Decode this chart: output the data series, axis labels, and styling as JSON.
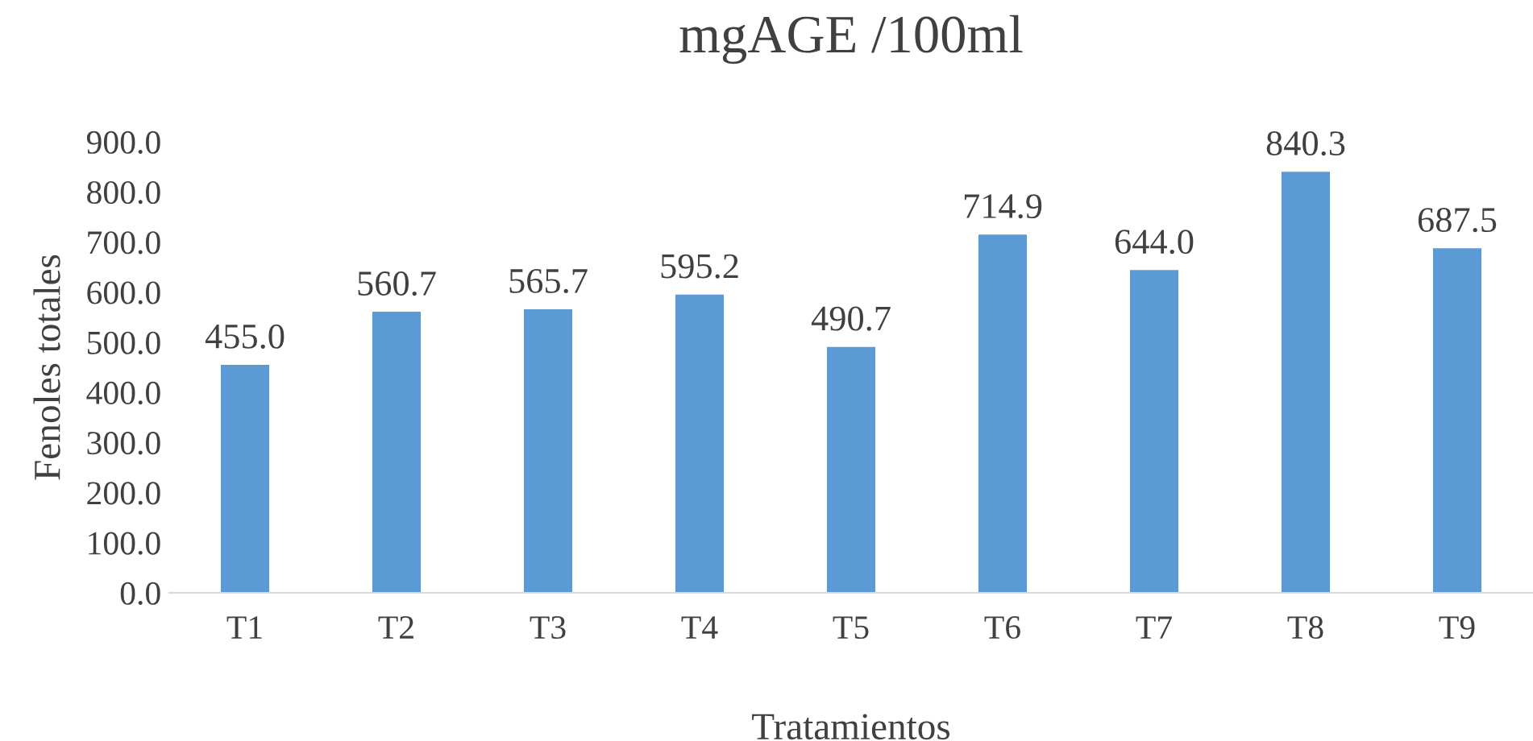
{
  "chart_data": {
    "type": "bar",
    "title": "mgAGE /100ml",
    "xlabel": "Tratamientos",
    "ylabel": "Fenoles totales",
    "categories": [
      "T1",
      "T2",
      "T3",
      "T4",
      "T5",
      "T6",
      "T7",
      "T8",
      "T9"
    ],
    "values": [
      455.0,
      560.7,
      565.7,
      595.2,
      490.7,
      714.9,
      644.0,
      840.3,
      687.5
    ],
    "value_labels": [
      "455.0",
      "560.7",
      "565.7",
      "595.2",
      "490.7",
      "714.9",
      "644.0",
      "840.3",
      "687.5"
    ],
    "color": "#5b9bd5",
    "ylim": [
      0,
      900
    ],
    "yticks": [
      {
        "value": 0,
        "label": "0.0"
      },
      {
        "value": 100,
        "label": "100.0"
      },
      {
        "value": 200,
        "label": "200.0"
      },
      {
        "value": 300,
        "label": "300.0"
      },
      {
        "value": 400,
        "label": "400.0"
      },
      {
        "value": 500,
        "label": "500.0"
      },
      {
        "value": 600,
        "label": "600.0"
      },
      {
        "value": 700,
        "label": "700.0"
      },
      {
        "value": 800,
        "label": "800.0"
      },
      {
        "value": 900,
        "label": "900.0"
      }
    ],
    "grid": false
  }
}
